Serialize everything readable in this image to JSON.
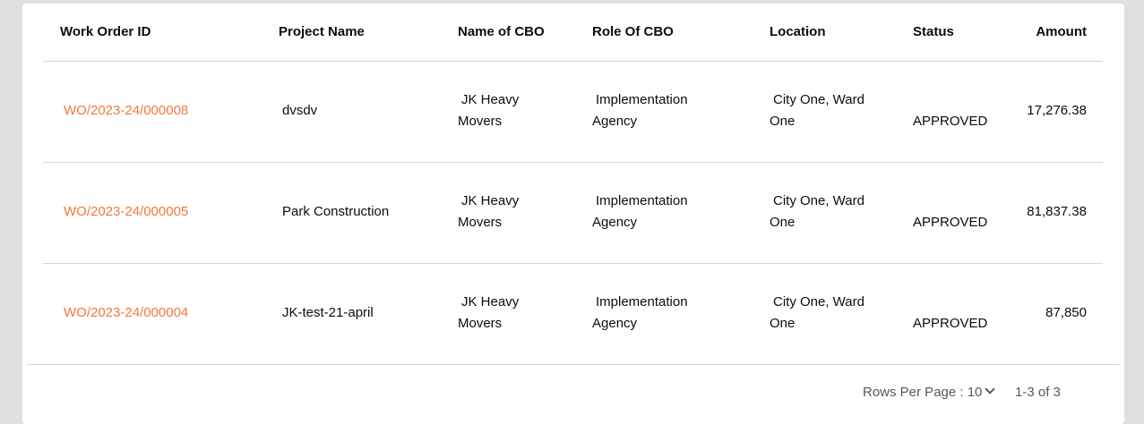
{
  "table": {
    "headers": [
      "Work Order ID",
      "Project Name",
      "Name of CBO",
      "Role Of CBO",
      "Location",
      "Status",
      "Amount"
    ],
    "rows": [
      {
        "id": "WO/2023-24/000008",
        "project": "dvsdv",
        "cbo_line1": "JK Heavy",
        "cbo_line2": "Movers",
        "role_line1": "Implementation",
        "role_line2": "Agency",
        "loc_line1": "City One, Ward",
        "loc_line2": "One",
        "status": "APPROVED",
        "amount": "17,276.38"
      },
      {
        "id": "WO/2023-24/000005",
        "project": "Park Construction",
        "cbo_line1": "JK Heavy",
        "cbo_line2": "Movers",
        "role_line1": "Implementation",
        "role_line2": "Agency",
        "loc_line1": "City One, Ward",
        "loc_line2": "One",
        "status": "APPROVED",
        "amount": "81,837.38"
      },
      {
        "id": "WO/2023-24/000004",
        "project": "JK-test-21-april",
        "cbo_line1": "JK Heavy",
        "cbo_line2": "Movers",
        "role_line1": "Implementation",
        "role_line2": "Agency",
        "loc_line1": "City One, Ward",
        "loc_line2": "One",
        "status": "APPROVED",
        "amount": "87,850"
      }
    ]
  },
  "pagination": {
    "rows_per_page_label": "Rows Per Page : 10",
    "range": "1-3 of 3"
  },
  "colors": {
    "link": "#f47738",
    "background": "#e0e0e0"
  }
}
